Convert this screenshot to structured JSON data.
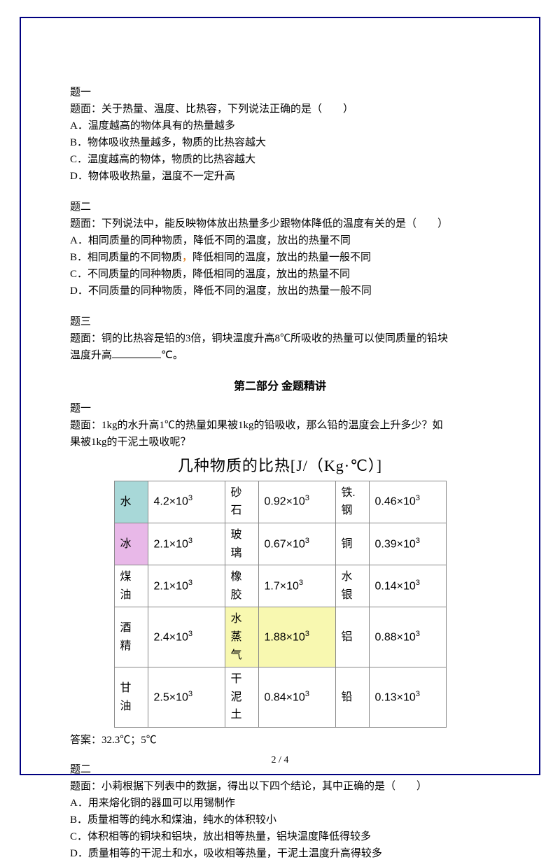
{
  "q1": {
    "title": "题一",
    "stem": "题面：关于热量、温度、比热容，下列说法正确的是（　　）",
    "opts": [
      "A．温度越高的物体具有的热量越多",
      "B．物体吸收热量越多，物质的比热容越大",
      "C．温度越高的物体，物质的比热容越大",
      "D．物体吸收热量，温度不一定升高"
    ]
  },
  "q2": {
    "title": "题二",
    "stem_a": "题面：下列说法中，能反映物体放出热量多少跟物体降低的温度有关的是（　　）",
    "opts_a": "A．相同质量的同种物质，降低不同的温度，放出的热量不同",
    "opts_b_pre": "B．相同质量的不同物质",
    "opts_b_dot": "，",
    "opts_b_post": "降低相同的温度，放出的热量一般不同",
    "opts_c": "C．不同质量的同种物质，降低相同的温度，放出的热量不同",
    "opts_d": "D．不同质量的同种物质，降低不同的温度，放出的热量一般不同"
  },
  "q3": {
    "title": "题三",
    "stem_a": "题面：铜的比热容是铅的3倍，铜块温度升高8℃所吸收的热量可以使同质量的铅块",
    "stem_b": "温度升高",
    "stem_c": "℃。"
  },
  "section2": "第二部分  金题精讲",
  "p2q1": {
    "title": "题一",
    "stem_a": "题面：1kg的水升高1℃的热量如果被1kg的铅吸收，那么铅的温度会上升多少？如",
    "stem_b": "果被1kg的干泥土吸收呢？"
  },
  "table": {
    "title": "几种物质的比热[J/（Kg·℃）]",
    "rows": [
      [
        {
          "n": "水",
          "v": "4.2×10",
          "bg": "bg-water-name"
        },
        {
          "n": "砂石",
          "v": "0.92×10"
        },
        {
          "n": "铁.钢",
          "v": "0.46×10"
        }
      ],
      [
        {
          "n": "冰",
          "v": "2.1×10",
          "bg": "bg-ice-name"
        },
        {
          "n": "玻璃",
          "v": "0.67×10"
        },
        {
          "n": "铜",
          "v": "0.39×10"
        }
      ],
      [
        {
          "n": "煤油",
          "v": "2.1×10"
        },
        {
          "n": "橡胶",
          "v": "1.7×10"
        },
        {
          "n": "水银",
          "v": "0.14×10"
        }
      ],
      [
        {
          "n": "酒精",
          "v": "2.4×10"
        },
        {
          "n": "水蒸气",
          "v": "1.88×10",
          "vbg": "bg-steam"
        },
        {
          "n": "铝",
          "v": "0.88×10"
        }
      ],
      [
        {
          "n": "甘油",
          "v": "2.5×10"
        },
        {
          "n": "干泥土",
          "v": "0.84×10"
        },
        {
          "n": "铅",
          "v": "0.13×10"
        }
      ]
    ]
  },
  "answer1": "答案：32.3℃；5℃",
  "p2q2": {
    "title": "题二",
    "stem": "题面：小莉根据下列表中的数据，得出以下四个结论，其中正确的是（　　）",
    "opts": [
      "A．用来熔化铜的器皿可以用锡制作",
      "B．质量相等的纯水和煤油，纯水的体积较小",
      "C．体积相等的铜块和铝块，放出相等热量，铝块温度降低得较多",
      "D．质量相等的干泥土和水，吸收相等热量，干泥土温度升高得较多"
    ]
  },
  "footer": "2 / 4"
}
